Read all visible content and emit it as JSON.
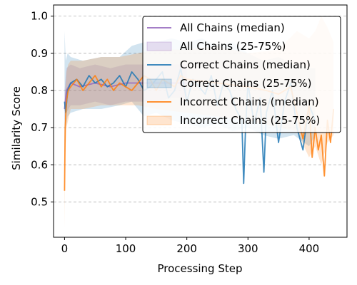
{
  "chart_data": {
    "type": "line",
    "title": "",
    "xlabel": "Processing Step",
    "ylabel": "Similarity Score",
    "xlim": [
      -18,
      462
    ],
    "ylim": [
      0.405,
      1.03
    ],
    "xticks": [
      0,
      100,
      200,
      300,
      400
    ],
    "yticks": [
      0.5,
      0.6,
      0.7,
      0.8,
      0.9,
      1.0
    ],
    "ytick_labels": [
      "0.5",
      "0.6",
      "0.7",
      "0.8",
      "0.9",
      "1.0"
    ],
    "grid": "y-dashed",
    "legend_position": "top-right",
    "series": [
      {
        "name": "All Chains (median)",
        "kind": "median",
        "color": "#9467bd",
        "x": [
          0,
          3,
          10,
          25,
          50,
          75,
          100,
          125,
          150,
          175,
          200
        ],
        "y": [
          0.75,
          0.8,
          0.82,
          0.81,
          0.82,
          0.81,
          0.82,
          0.82,
          0.82,
          0.82,
          0.82
        ]
      },
      {
        "name": "All Chains (25-75%)",
        "kind": "band",
        "color": "#9467bd",
        "x": [
          0,
          3,
          10,
          25,
          50,
          75,
          100,
          125,
          150,
          175,
          200
        ],
        "lower": [
          0.72,
          0.74,
          0.76,
          0.76,
          0.77,
          0.76,
          0.77,
          0.77,
          0.77,
          0.78,
          0.78
        ],
        "upper": [
          0.8,
          0.86,
          0.87,
          0.86,
          0.87,
          0.86,
          0.87,
          0.87,
          0.87,
          0.87,
          0.87
        ]
      },
      {
        "name": "Correct Chains (median)",
        "kind": "median",
        "color": "#1f77b4",
        "x": [
          0,
          2,
          5,
          10,
          20,
          30,
          40,
          50,
          60,
          70,
          80,
          90,
          100,
          110,
          120,
          130,
          140,
          150,
          160,
          170,
          180,
          190,
          200,
          210,
          220,
          230,
          240,
          250,
          260,
          270,
          280,
          290,
          293,
          296,
          300,
          310,
          320,
          326,
          330,
          340,
          350,
          360,
          370,
          380,
          390,
          400,
          410
        ],
        "y": [
          0.77,
          0.74,
          0.8,
          0.82,
          0.83,
          0.81,
          0.84,
          0.82,
          0.83,
          0.81,
          0.82,
          0.84,
          0.81,
          0.85,
          0.83,
          0.8,
          0.81,
          0.83,
          0.85,
          0.78,
          0.8,
          0.86,
          0.77,
          0.83,
          0.81,
          0.79,
          0.84,
          0.76,
          0.82,
          0.8,
          0.75,
          0.72,
          0.55,
          0.7,
          0.82,
          0.71,
          0.78,
          0.58,
          0.74,
          0.8,
          0.66,
          0.77,
          0.82,
          0.7,
          0.64,
          0.76,
          0.72
        ]
      },
      {
        "name": "Correct Chains (25-75%)",
        "kind": "band",
        "color": "#1f77b4",
        "x": [
          0,
          2,
          5,
          10,
          30,
          60,
          90,
          110,
          130,
          150,
          175,
          200,
          225,
          250,
          275,
          300,
          325,
          350,
          375,
          400,
          410
        ],
        "lower": [
          0.63,
          0.7,
          0.73,
          0.74,
          0.75,
          0.75,
          0.76,
          0.77,
          0.73,
          0.74,
          0.72,
          0.71,
          0.7,
          0.71,
          0.69,
          0.7,
          0.68,
          0.67,
          0.68,
          0.65,
          0.68
        ],
        "upper": [
          0.96,
          0.88,
          0.9,
          0.89,
          0.88,
          0.89,
          0.89,
          0.92,
          0.93,
          0.93,
          0.94,
          0.93,
          0.94,
          0.92,
          0.93,
          0.9,
          0.88,
          0.89,
          0.87,
          0.86,
          0.86
        ]
      },
      {
        "name": "Incorrect Chains (median)",
        "kind": "median",
        "color": "#ff7f0e",
        "x": [
          0,
          1,
          3,
          6,
          10,
          20,
          30,
          40,
          50,
          60,
          70,
          80,
          90,
          100,
          110,
          120,
          130,
          140,
          150,
          160,
          170,
          180,
          190,
          200,
          250,
          300,
          330,
          350,
          370,
          390,
          400,
          405,
          410,
          415,
          420,
          425,
          430,
          435,
          440
        ],
        "y": [
          0.53,
          0.7,
          0.77,
          0.8,
          0.81,
          0.83,
          0.8,
          0.82,
          0.84,
          0.81,
          0.83,
          0.8,
          0.82,
          0.81,
          0.8,
          0.82,
          0.84,
          0.83,
          0.8,
          0.83,
          0.82,
          0.81,
          0.84,
          0.83,
          0.82,
          0.81,
          0.8,
          0.79,
          0.81,
          0.67,
          0.76,
          0.62,
          0.7,
          0.64,
          0.68,
          0.57,
          0.72,
          0.66,
          0.75
        ]
      },
      {
        "name": "Incorrect Chains (25-75%)",
        "kind": "band",
        "color": "#ff7f0e",
        "x": [
          0,
          1,
          3,
          6,
          10,
          30,
          60,
          90,
          120,
          150,
          200,
          250,
          300,
          350,
          380,
          400,
          410,
          420,
          430,
          440
        ],
        "lower": [
          0.43,
          0.62,
          0.7,
          0.72,
          0.75,
          0.75,
          0.76,
          0.76,
          0.76,
          0.75,
          0.74,
          0.73,
          0.72,
          0.7,
          0.69,
          0.62,
          0.65,
          0.6,
          0.66,
          0.68
        ],
        "upper": [
          0.68,
          0.79,
          0.85,
          0.87,
          0.88,
          0.88,
          0.89,
          0.89,
          0.9,
          0.91,
          0.91,
          0.92,
          0.9,
          0.91,
          0.96,
          0.94,
          0.96,
          1.0,
          0.97,
          0.93
        ]
      }
    ]
  }
}
